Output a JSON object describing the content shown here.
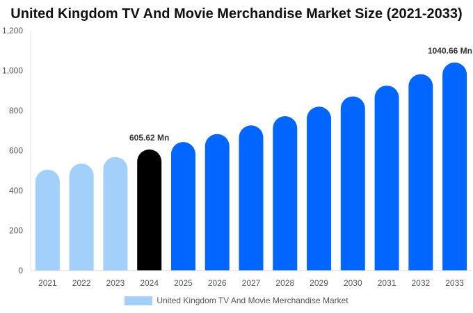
{
  "chart_data": {
    "type": "bar",
    "title": "United Kingdom TV And Movie Merchandise Market Size (2021-2033)",
    "categories": [
      "2021",
      "2022",
      "2023",
      "2024",
      "2025",
      "2026",
      "2027",
      "2028",
      "2029",
      "2030",
      "2031",
      "2032",
      "2033"
    ],
    "series": [
      {
        "name": "United Kingdom TV And Movie Merchandise Market",
        "values": [
          505,
          535,
          568,
          605.62,
          643,
          683,
          726,
          772,
          820,
          871,
          925,
          982,
          1040.66
        ]
      }
    ],
    "data_labels": [
      {
        "category": "2024",
        "text": "605.62 Mn"
      },
      {
        "category": "2033",
        "text": "1040.66 Mn"
      }
    ],
    "ylim": [
      0,
      1200
    ],
    "yticks": [
      0,
      200,
      400,
      600,
      800,
      1000,
      1200
    ],
    "ytick_labels": [
      "0",
      "200",
      "400",
      "600",
      "800",
      "1,000",
      "1,200"
    ],
    "grid": false,
    "legend_position": "bottom",
    "colors": {
      "historical": "#a3cffb",
      "current": "#000000",
      "forecast": "#0066ff"
    },
    "bar_color_roles": [
      "historical",
      "historical",
      "historical",
      "current",
      "forecast",
      "forecast",
      "forecast",
      "forecast",
      "forecast",
      "forecast",
      "forecast",
      "forecast",
      "forecast"
    ]
  }
}
